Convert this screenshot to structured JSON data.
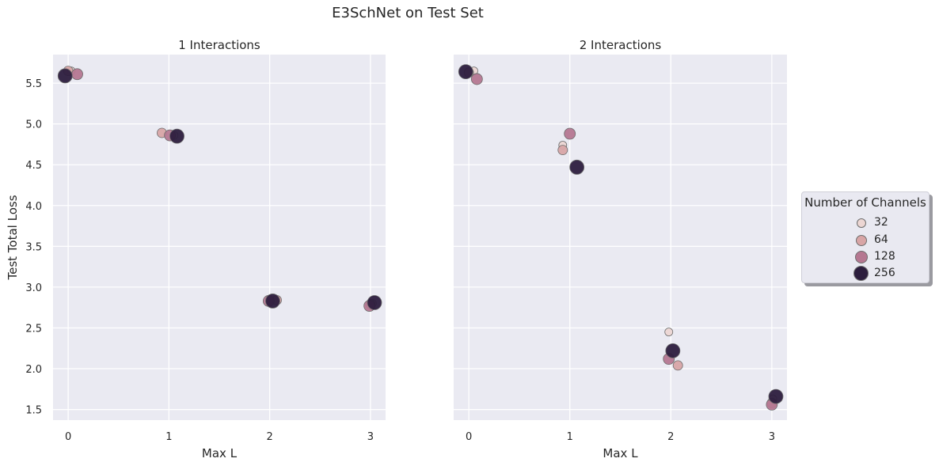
{
  "suptitle": "E3SchNet on Test Set",
  "palette": {
    "32": "#ecd6d3",
    "64": "#d8a5a6",
    "128": "#b57791",
    "256": "#2d1e3e"
  },
  "chart_data": [
    {
      "type": "scatter",
      "title": "1 Interactions",
      "xlabel": "Max L",
      "ylabel": "Test Total Loss",
      "xlim": [
        -0.15,
        3.15
      ],
      "ylim": [
        1.37,
        5.85
      ],
      "xticks": [
        "0",
        "1",
        "2",
        "3"
      ],
      "yticks": [
        "1.5",
        "2.0",
        "2.5",
        "3.0",
        "3.5",
        "4.0",
        "4.5",
        "5.0",
        "5.5"
      ],
      "grid": true,
      "series": [
        {
          "name": "32",
          "points": [
            {
              "x": 0.03,
              "y": 5.65
            },
            {
              "x": 1.05,
              "y": 4.86
            },
            {
              "x": 2.06,
              "y": 2.84
            },
            {
              "x": 3.02,
              "y": 2.8
            }
          ]
        },
        {
          "name": "64",
          "points": [
            {
              "x": 0.0,
              "y": 5.65
            },
            {
              "x": 0.93,
              "y": 4.89
            },
            {
              "x": 2.07,
              "y": 2.84
            },
            {
              "x": 3.0,
              "y": 2.79
            }
          ]
        },
        {
          "name": "128",
          "points": [
            {
              "x": 0.09,
              "y": 5.61
            },
            {
              "x": 1.01,
              "y": 4.86
            },
            {
              "x": 1.99,
              "y": 2.83
            },
            {
              "x": 2.99,
              "y": 2.77
            }
          ]
        },
        {
          "name": "256",
          "points": [
            {
              "x": -0.03,
              "y": 5.59
            },
            {
              "x": 1.08,
              "y": 4.85
            },
            {
              "x": 2.03,
              "y": 2.83
            },
            {
              "x": 3.04,
              "y": 2.81
            }
          ]
        }
      ]
    },
    {
      "type": "scatter",
      "title": "2 Interactions",
      "xlabel": "Max L",
      "ylabel": "",
      "xlim": [
        -0.15,
        3.15
      ],
      "ylim": [
        1.37,
        5.85
      ],
      "xticks": [
        "0",
        "1",
        "2",
        "3"
      ],
      "yticks": [],
      "grid": true,
      "series": [
        {
          "name": "32",
          "points": [
            {
              "x": 0.05,
              "y": 5.65
            },
            {
              "x": 0.93,
              "y": 4.74
            },
            {
              "x": 1.98,
              "y": 2.45
            },
            {
              "x": 3.01,
              "y": 1.63
            }
          ]
        },
        {
          "name": "64",
          "points": [
            {
              "x": 0.0,
              "y": 5.63
            },
            {
              "x": 0.93,
              "y": 4.68
            },
            {
              "x": 2.07,
              "y": 2.04
            },
            {
              "x": 3.0,
              "y": 1.58
            }
          ]
        },
        {
          "name": "128",
          "points": [
            {
              "x": 0.08,
              "y": 5.55
            },
            {
              "x": 1.0,
              "y": 4.88
            },
            {
              "x": 1.98,
              "y": 2.12
            },
            {
              "x": 3.0,
              "y": 1.56
            }
          ]
        },
        {
          "name": "256",
          "points": [
            {
              "x": -0.03,
              "y": 5.64
            },
            {
              "x": 1.07,
              "y": 4.47
            },
            {
              "x": 2.02,
              "y": 2.22
            },
            {
              "x": 3.04,
              "y": 1.66
            }
          ]
        }
      ]
    }
  ],
  "legend": {
    "title": "Number of Channels",
    "placement": "center-right",
    "items": [
      "32",
      "64",
      "128",
      "256"
    ]
  }
}
